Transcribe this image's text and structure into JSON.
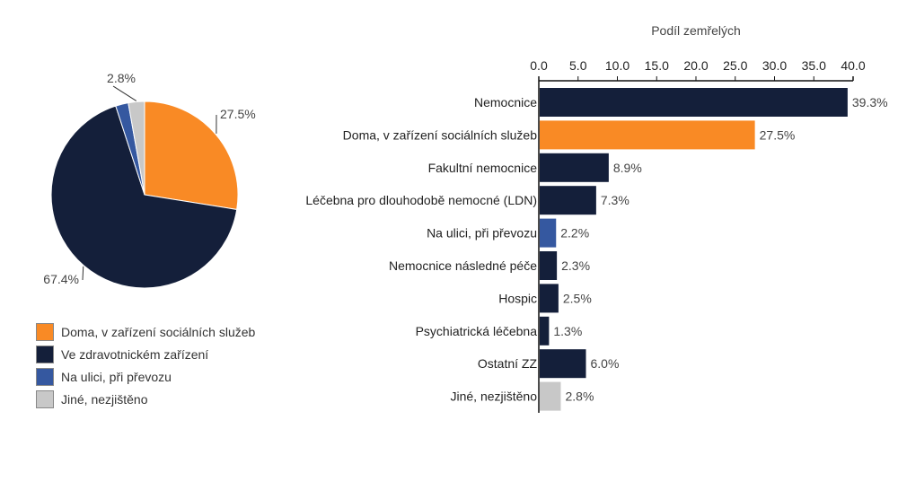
{
  "chart_data": [
    {
      "type": "pie",
      "slices": [
        {
          "name": "Doma, v zařízení sociálních služeb",
          "value": 27.5,
          "label": "27.5%",
          "color": "#f98a25"
        },
        {
          "name": "Ve zdravotnickém zařízení",
          "value": 67.4,
          "label": "67.4%",
          "color": "#141f3a"
        },
        {
          "name": "Na ulici, při převozu",
          "value": 2.2,
          "label": "",
          "color": "#3558a0"
        },
        {
          "name": "Jiné, nezjištěno",
          "value": 2.8,
          "label": "2.8%",
          "color": "#c8c8c8"
        }
      ],
      "legend": "bottom-left"
    },
    {
      "type": "bar",
      "orientation": "horizontal",
      "xlabel": "Podíl zemřelých",
      "xlim": [
        0,
        40
      ],
      "ticks": [
        "0.0",
        "5.0",
        "10.0",
        "15.0",
        "20.0",
        "25.0",
        "30.0",
        "35.0",
        "40.0"
      ],
      "categories": [
        "Nemocnice",
        "Doma, v zařízení sociálních služeb",
        "Fakultní nemocnice",
        "Léčebna pro dlouhodobě nemocné (LDN)",
        "Na ulici, při převozu",
        "Nemocnice následné péče",
        "Hospic",
        "Psychiatrická léčebna",
        "Ostatní ZZ",
        "Jiné, nezjištěno"
      ],
      "values": [
        39.3,
        27.5,
        8.9,
        7.3,
        2.2,
        2.3,
        2.5,
        1.3,
        6.0,
        2.8
      ],
      "labels": [
        "39.3%",
        "27.5%",
        "8.9%",
        "7.3%",
        "2.2%",
        "2.3%",
        "2.5%",
        "1.3%",
        "6.0%",
        "2.8%"
      ],
      "colors": [
        "#141f3a",
        "#f98a25",
        "#141f3a",
        "#141f3a",
        "#3558a0",
        "#141f3a",
        "#141f3a",
        "#141f3a",
        "#141f3a",
        "#c8c8c8"
      ]
    }
  ]
}
